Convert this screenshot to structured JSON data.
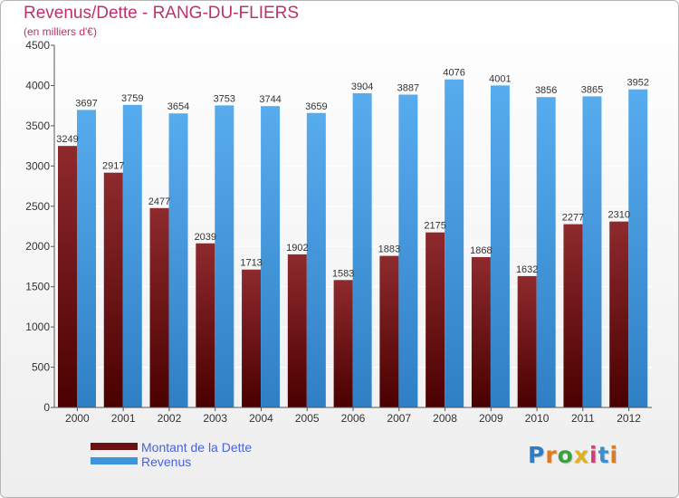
{
  "title": "Revenus/Dette - RANG-DU-FLIERS",
  "subtitle": "(en milliers d'€)",
  "legend": {
    "debt_label": "Montant de la Dette",
    "revenue_label": "Revenus"
  },
  "logo": {
    "text": "Proxiti",
    "letter_colors": [
      "#2a7fc8",
      "#e07a20",
      "#3aa040",
      "#e0b020",
      "#d04080",
      "#3a8fd0",
      "#e07a20"
    ]
  },
  "colors": {
    "debt": "#6b1015",
    "revenue": "#3d95dc",
    "title": "#c0306a",
    "legend_text": "#4a62d8"
  },
  "chart_data": {
    "type": "bar",
    "title": "Revenus/Dette - RANG-DU-FLIERS",
    "ylabel": "(en milliers d'€)",
    "xlabel": "",
    "ylim": [
      0,
      4500
    ],
    "yticks": [
      0,
      500,
      1000,
      1500,
      2000,
      2500,
      3000,
      3500,
      4000,
      4500
    ],
    "grid": true,
    "legend_position": "bottom-left",
    "categories": [
      "2000",
      "2001",
      "2002",
      "2003",
      "2004",
      "2005",
      "2006",
      "2007",
      "2008",
      "2009",
      "2010",
      "2011",
      "2012"
    ],
    "series": [
      {
        "name": "Montant de la Dette",
        "values": [
          3249,
          2917,
          2477,
          2039,
          1713,
          1902,
          1583,
          1883,
          2175,
          1868,
          1632,
          2277,
          2310
        ],
        "labels": [
          "3249",
          "2917",
          "2477",
          "2039",
          "1713",
          "1902",
          "1583",
          "1883",
          "2175",
          "1868",
          "1632",
          "2277",
          "2310"
        ]
      },
      {
        "name": "Revenus",
        "values": [
          3697,
          3759,
          3654,
          3753,
          3744,
          3659,
          3904,
          3887,
          4076,
          4001,
          3856,
          3865,
          3952
        ],
        "labels": [
          "3697",
          "3759",
          "3654",
          "3753",
          "3744",
          "3659",
          "3904",
          "3887",
          "4076",
          "4001",
          "3856",
          "3865",
          "3952"
        ]
      }
    ]
  }
}
